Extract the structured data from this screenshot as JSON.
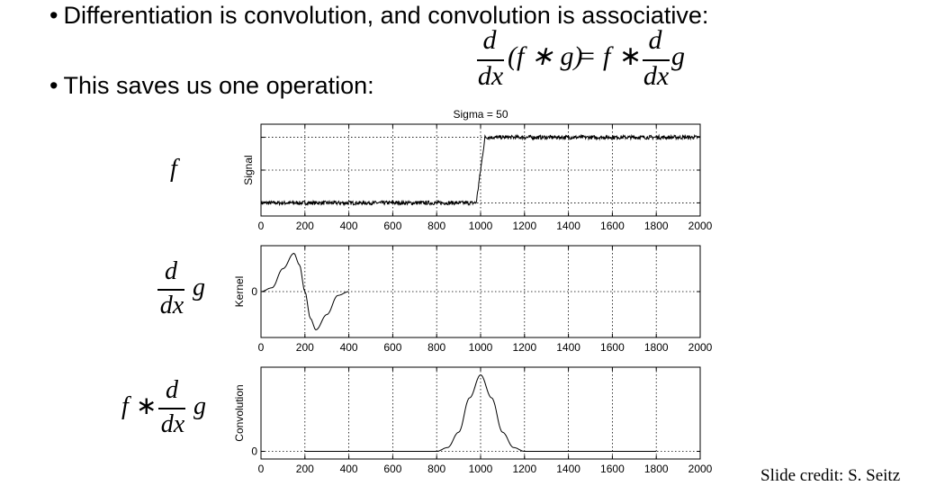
{
  "slide": {
    "bullet1": "Differentiation is convolution, and convolution is associative:",
    "bullet2": "This saves us one operation:",
    "bullet_marker": "•",
    "credit": "Slide credit: S. Seitz"
  },
  "math": {
    "d": "d",
    "dx": "dx",
    "f": "f",
    "g": "g",
    "star": "∗",
    "eq": "=",
    "lhs_group": "(f ∗ g)"
  },
  "chart_data": [
    {
      "type": "line",
      "title": "Sigma = 50",
      "ylabel": "Signal",
      "row_label": "f",
      "xlim": [
        0,
        2000
      ],
      "xticks": [
        0,
        200,
        400,
        600,
        800,
        1000,
        1200,
        1400,
        1600,
        1800,
        2000
      ],
      "ylim": [
        -0.2,
        1.2
      ],
      "grid": true,
      "description_of_data": "noisy step",
      "series": [
        {
          "x": [
            0,
            980,
            1020,
            2000
          ],
          "y": [
            0,
            0,
            1,
            1
          ],
          "noise": 0.03
        }
      ]
    },
    {
      "type": "line",
      "title": "",
      "ylabel": "Kernel",
      "row_label": "d/dx g",
      "xlim": [
        0,
        2000
      ],
      "xticks": [
        0,
        200,
        400,
        600,
        800,
        1000,
        1200,
        1400,
        1600,
        1800,
        2000
      ],
      "yticks": [
        0
      ],
      "ylim": [
        -1.2,
        1.2
      ],
      "grid": true,
      "series": [
        {
          "x": [
            0,
            50,
            100,
            150,
            175,
            200,
            225,
            250,
            300,
            350,
            400
          ],
          "y": [
            0,
            0.1,
            0.6,
            1.0,
            0.7,
            0,
            -0.7,
            -1.0,
            -0.6,
            -0.1,
            0
          ]
        }
      ]
    },
    {
      "type": "line",
      "title": "",
      "ylabel": "Convolution",
      "row_label": "f * d/dx g",
      "xlim": [
        0,
        2000
      ],
      "xticks": [
        0,
        200,
        400,
        600,
        800,
        1000,
        1200,
        1400,
        1600,
        1800,
        2000
      ],
      "yticks": [
        0
      ],
      "ylim": [
        -0.1,
        1.1
      ],
      "grid": true,
      "series": [
        {
          "x": [
            200,
            800,
            850,
            900,
            950,
            1000,
            1050,
            1100,
            1150,
            1200,
            1800
          ],
          "y": [
            0,
            0,
            0.05,
            0.25,
            0.7,
            1.0,
            0.7,
            0.25,
            0.05,
            0,
            0
          ]
        }
      ]
    }
  ]
}
